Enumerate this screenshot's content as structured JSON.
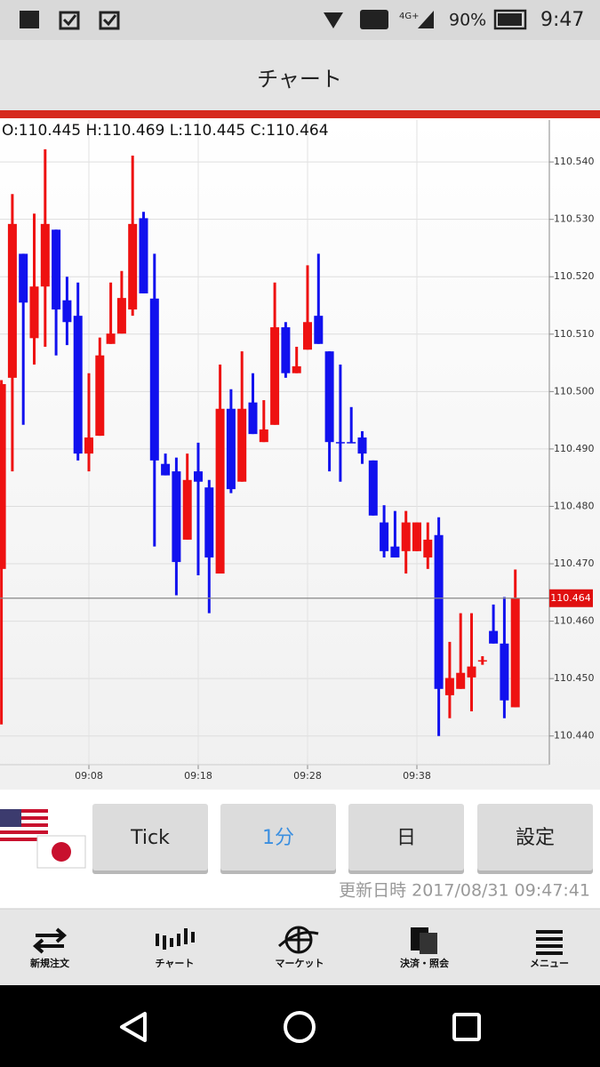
{
  "status_bar": {
    "network": "4G+",
    "battery": "90%",
    "time": "9:47"
  },
  "header": {
    "title": "チャート"
  },
  "chart_data": {
    "type": "candlestick",
    "ohlc_label": "O:110.445 H:110.469 L:110.445 C:110.464",
    "categories": [
      null,
      null,
      null,
      null,
      null,
      null,
      null,
      null,
      "09:08",
      null,
      null,
      null,
      null,
      null,
      null,
      null,
      null,
      null,
      "09:18",
      null,
      null,
      null,
      null,
      null,
      null,
      null,
      null,
      null,
      "09:28",
      null,
      null,
      null,
      null,
      null,
      null,
      null,
      null,
      null,
      "09:38",
      null,
      null,
      null,
      null,
      null,
      null,
      null,
      null,
      null
    ],
    "open": [
      110.4691,
      110.5024,
      110.524,
      110.5093,
      110.5183,
      110.5282,
      110.5159,
      110.5132,
      110.4892,
      110.4923,
      110.5083,
      110.5101,
      110.5143,
      110.5302,
      110.5162,
      110.4874,
      110.4861,
      110.4742,
      110.4861,
      110.4833,
      110.4683,
      110.497,
      110.4843,
      110.4981,
      110.4912,
      110.4942,
      110.5112,
      110.5032,
      110.5073,
      110.5132,
      110.507,
      110.4912,
      110.4912,
      110.492,
      110.488,
      110.4772,
      110.473,
      110.4722,
      110.4722,
      110.4711,
      110.475,
      110.4471,
      110.4482,
      110.4502,
      110.4531,
      110.4583,
      110.4561,
      110.445
    ],
    "high": [
      110.502,
      110.5344,
      110.524,
      110.531,
      110.5422,
      110.5282,
      110.52,
      110.519,
      110.5032,
      110.5094,
      110.519,
      110.521,
      110.5411,
      110.5313,
      110.524,
      110.4892,
      110.4885,
      110.4892,
      110.4911,
      110.4846,
      110.5047,
      110.5004,
      110.507,
      110.5032,
      110.4985,
      110.519,
      110.5121,
      110.5078,
      110.522,
      110.524,
      110.507,
      110.5047,
      110.4973,
      110.4931,
      110.488,
      110.4802,
      110.4792,
      110.4792,
      110.4772,
      110.4772,
      110.4781,
      110.4564,
      110.4614,
      110.4614,
      110.4539,
      110.4629,
      110.4642,
      110.469
    ],
    "low": [
      110.442,
      110.4861,
      110.4942,
      110.5047,
      110.5078,
      110.5063,
      110.5081,
      110.488,
      110.4861,
      110.4923,
      110.5083,
      110.5101,
      110.5132,
      110.5171,
      110.473,
      110.4854,
      110.4645,
      110.4742,
      110.468,
      110.4614,
      110.4683,
      110.4823,
      110.4843,
      110.4926,
      110.4912,
      110.4942,
      110.5024,
      110.5032,
      110.5073,
      110.5083,
      110.4861,
      110.4843,
      110.491,
      110.4874,
      110.4784,
      110.4711,
      110.4711,
      110.4683,
      110.4722,
      110.4691,
      110.44,
      110.4431,
      110.4482,
      110.4443,
      110.4524,
      110.4561,
      110.4431,
      110.445
    ],
    "close": [
      110.5013,
      110.5292,
      110.5155,
      110.5183,
      110.5292,
      110.5143,
      110.5121,
      110.4892,
      110.492,
      110.5063,
      110.5101,
      110.5163,
      110.5292,
      110.5171,
      110.488,
      110.4854,
      110.4703,
      110.4846,
      110.4843,
      110.4711,
      110.497,
      110.483,
      110.497,
      110.4926,
      110.4934,
      110.5112,
      110.5032,
      110.5044,
      110.5121,
      110.5083,
      110.4912,
      110.491,
      110.491,
      110.4892,
      110.4784,
      110.4722,
      110.4711,
      110.4772,
      110.4772,
      110.4742,
      110.4482,
      110.4501,
      110.451,
      110.4521,
      110.4532,
      110.4561,
      110.4462,
      110.464
    ],
    "up_color": "#ee1111",
    "down_color": "#1111ee",
    "ylim": [
      110.435,
      110.5473
    ],
    "yticks": [
      {
        "value": 110.44,
        "label": "110.440"
      },
      {
        "value": 110.45,
        "label": "110.450"
      },
      {
        "value": 110.46,
        "label": "110.460"
      },
      {
        "value": 110.47,
        "label": "110.470"
      },
      {
        "value": 110.48,
        "label": "110.480"
      },
      {
        "value": 110.49,
        "label": "110.490"
      },
      {
        "value": 110.5,
        "label": "110.500"
      },
      {
        "value": 110.51,
        "label": "110.510"
      },
      {
        "value": 110.52,
        "label": "110.520"
      },
      {
        "value": 110.53,
        "label": "110.530"
      },
      {
        "value": 110.54,
        "label": "110.540"
      }
    ],
    "grid": true,
    "current_price": 110.464
  },
  "controls": {
    "buttons": [
      "Tick",
      "1分",
      "日",
      "設定"
    ],
    "selected": 1
  },
  "updated": "更新日時 2017/08/31 09:47:41",
  "nav": [
    "新規注文",
    "チャート",
    "マーケット",
    "決済・照会",
    "メニュー"
  ]
}
